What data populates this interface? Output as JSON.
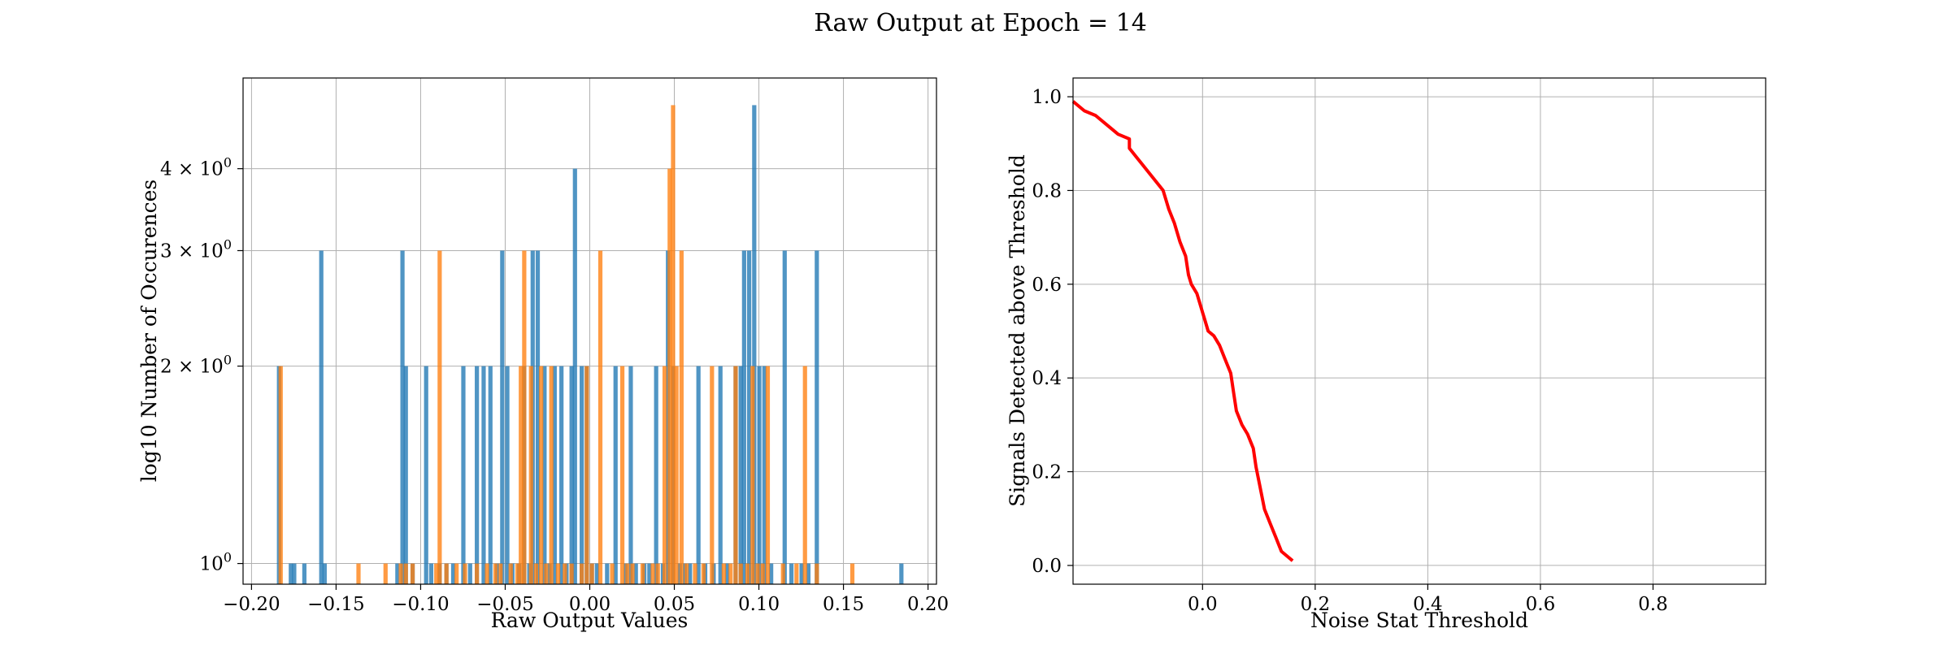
{
  "figure": {
    "title": "Raw Output at Epoch = 14"
  },
  "chart_data": [
    {
      "type": "bar",
      "subtype": "histogram",
      "xlabel": "Raw Output Values",
      "ylabel": "log10 Number of Occurences",
      "yscale": "log",
      "xlim": [
        -0.205,
        0.205
      ],
      "ylim": [
        0.93,
        5.5
      ],
      "grid": true,
      "x_ticks": [
        {
          "v": -0.2,
          "label": "−0.20"
        },
        {
          "v": -0.15,
          "label": "−0.15"
        },
        {
          "v": -0.1,
          "label": "−0.10"
        },
        {
          "v": -0.05,
          "label": "−0.05"
        },
        {
          "v": 0.0,
          "label": "0.00"
        },
        {
          "v": 0.05,
          "label": "0.05"
        },
        {
          "v": 0.1,
          "label": "0.10"
        },
        {
          "v": 0.15,
          "label": "0.15"
        },
        {
          "v": 0.2,
          "label": "0.20"
        }
      ],
      "y_ticks": [
        {
          "v": 1,
          "base": "10",
          "exp": "0"
        },
        {
          "v": 2,
          "base": "2 × 10",
          "exp": "0"
        },
        {
          "v": 3,
          "base": "3 × 10",
          "exp": "0"
        },
        {
          "v": 4,
          "base": "4 × 10",
          "exp": "0"
        }
      ],
      "bin_width": 0.0025,
      "series": [
        {
          "color": "#1f77b4",
          "bins": [
            [
              -0.185,
              2
            ],
            [
              -0.178,
              1
            ],
            [
              -0.176,
              1
            ],
            [
              -0.17,
              1
            ],
            [
              -0.16,
              3
            ],
            [
              -0.158,
              1
            ],
            [
              -0.115,
              1
            ],
            [
              -0.112,
              3
            ],
            [
              -0.11,
              2
            ],
            [
              -0.106,
              1
            ],
            [
              -0.098,
              2
            ],
            [
              -0.095,
              1
            ],
            [
              -0.09,
              1
            ],
            [
              -0.086,
              1
            ],
            [
              -0.082,
              1
            ],
            [
              -0.076,
              2
            ],
            [
              -0.072,
              1
            ],
            [
              -0.068,
              2
            ],
            [
              -0.064,
              2
            ],
            [
              -0.06,
              2
            ],
            [
              -0.056,
              1
            ],
            [
              -0.053,
              3
            ],
            [
              -0.05,
              2
            ],
            [
              -0.047,
              1
            ],
            [
              -0.043,
              1
            ],
            [
              -0.04,
              2
            ],
            [
              -0.037,
              1
            ],
            [
              -0.035,
              3
            ],
            [
              -0.032,
              3
            ],
            [
              -0.028,
              2
            ],
            [
              -0.025,
              1
            ],
            [
              -0.022,
              2
            ],
            [
              -0.018,
              2
            ],
            [
              -0.015,
              1
            ],
            [
              -0.012,
              2
            ],
            [
              -0.01,
              4
            ],
            [
              -0.006,
              2
            ],
            [
              -0.003,
              2
            ],
            [
              0.0,
              1
            ],
            [
              0.003,
              1
            ],
            [
              0.009,
              1
            ],
            [
              0.014,
              2
            ],
            [
              0.02,
              1
            ],
            [
              0.023,
              2
            ],
            [
              0.026,
              1
            ],
            [
              0.031,
              1
            ],
            [
              0.034,
              1
            ],
            [
              0.038,
              2
            ],
            [
              0.042,
              1
            ],
            [
              0.045,
              3
            ],
            [
              0.048,
              2
            ],
            [
              0.052,
              1
            ],
            [
              0.055,
              1
            ],
            [
              0.058,
              1
            ],
            [
              0.063,
              2
            ],
            [
              0.067,
              1
            ],
            [
              0.072,
              1
            ],
            [
              0.076,
              2
            ],
            [
              0.08,
              1
            ],
            [
              0.085,
              2
            ],
            [
              0.088,
              2
            ],
            [
              0.09,
              3
            ],
            [
              0.093,
              3
            ],
            [
              0.096,
              5
            ],
            [
              0.099,
              2
            ],
            [
              0.102,
              2
            ],
            [
              0.106,
              1
            ],
            [
              0.114,
              3
            ],
            [
              0.118,
              1
            ],
            [
              0.124,
              1
            ],
            [
              0.128,
              1
            ],
            [
              0.133,
              3
            ],
            [
              0.183,
              1
            ]
          ]
        },
        {
          "color": "#ff7f0e",
          "bins": [
            [
              -0.184,
              2
            ],
            [
              -0.138,
              1
            ],
            [
              -0.122,
              1
            ],
            [
              -0.113,
              1
            ],
            [
              -0.11,
              1
            ],
            [
              -0.106,
              1
            ],
            [
              -0.092,
              1
            ],
            [
              -0.09,
              3
            ],
            [
              -0.086,
              1
            ],
            [
              -0.08,
              1
            ],
            [
              -0.075,
              1
            ],
            [
              -0.068,
              1
            ],
            [
              -0.062,
              1
            ],
            [
              -0.057,
              1
            ],
            [
              -0.054,
              1
            ],
            [
              -0.048,
              1
            ],
            [
              -0.044,
              1
            ],
            [
              -0.042,
              2
            ],
            [
              -0.04,
              3
            ],
            [
              -0.036,
              2
            ],
            [
              -0.033,
              1
            ],
            [
              -0.03,
              2
            ],
            [
              -0.027,
              1
            ],
            [
              -0.024,
              2
            ],
            [
              -0.02,
              1
            ],
            [
              -0.016,
              1
            ],
            [
              -0.012,
              1
            ],
            [
              -0.006,
              1
            ],
            [
              -0.003,
              2
            ],
            [
              0.0,
              1
            ],
            [
              0.005,
              3
            ],
            [
              0.012,
              1
            ],
            [
              0.018,
              2
            ],
            [
              0.021,
              1
            ],
            [
              0.024,
              1
            ],
            [
              0.03,
              1
            ],
            [
              0.036,
              1
            ],
            [
              0.039,
              1
            ],
            [
              0.043,
              2
            ],
            [
              0.046,
              4
            ],
            [
              0.048,
              5
            ],
            [
              0.05,
              2
            ],
            [
              0.053,
              3
            ],
            [
              0.056,
              1
            ],
            [
              0.061,
              1
            ],
            [
              0.066,
              1
            ],
            [
              0.071,
              2
            ],
            [
              0.078,
              1
            ],
            [
              0.082,
              1
            ],
            [
              0.085,
              2
            ],
            [
              0.088,
              1
            ],
            [
              0.092,
              1
            ],
            [
              0.095,
              2
            ],
            [
              0.098,
              1
            ],
            [
              0.101,
              1
            ],
            [
              0.104,
              2
            ],
            [
              0.113,
              1
            ],
            [
              0.121,
              1
            ],
            [
              0.126,
              2
            ],
            [
              0.133,
              1
            ],
            [
              0.154,
              1
            ]
          ]
        }
      ]
    },
    {
      "type": "line",
      "xlabel": "Noise Stat Threshold",
      "ylabel": "Signals Detected above Threshold",
      "xlim": [
        -0.23,
        1.0
      ],
      "ylim": [
        -0.04,
        1.04
      ],
      "grid": true,
      "x_ticks": [
        {
          "v": 0.0,
          "label": "0.0"
        },
        {
          "v": 0.2,
          "label": "0.2"
        },
        {
          "v": 0.4,
          "label": "0.4"
        },
        {
          "v": 0.6,
          "label": "0.6"
        },
        {
          "v": 0.8,
          "label": "0.8"
        }
      ],
      "y_ticks": [
        {
          "v": 0.0,
          "label": "0.0"
        },
        {
          "v": 0.2,
          "label": "0.2"
        },
        {
          "v": 0.4,
          "label": "0.4"
        },
        {
          "v": 0.6,
          "label": "0.6"
        },
        {
          "v": 0.8,
          "label": "0.8"
        },
        {
          "v": 1.0,
          "label": "1.0"
        }
      ],
      "series": [
        {
          "color": "#ff0000",
          "points": [
            [
              -0.23,
              0.99
            ],
            [
              -0.21,
              0.97
            ],
            [
              -0.19,
              0.96
            ],
            [
              -0.17,
              0.94
            ],
            [
              -0.15,
              0.92
            ],
            [
              -0.13,
              0.91
            ],
            [
              -0.13,
              0.89
            ],
            [
              -0.11,
              0.86
            ],
            [
              -0.09,
              0.83
            ],
            [
              -0.07,
              0.8
            ],
            [
              -0.06,
              0.76
            ],
            [
              -0.05,
              0.73
            ],
            [
              -0.04,
              0.69
            ],
            [
              -0.03,
              0.66
            ],
            [
              -0.025,
              0.62
            ],
            [
              -0.02,
              0.6
            ],
            [
              -0.01,
              0.58
            ],
            [
              0.0,
              0.54
            ],
            [
              0.005,
              0.52
            ],
            [
              0.01,
              0.5
            ],
            [
              0.02,
              0.49
            ],
            [
              0.03,
              0.47
            ],
            [
              0.04,
              0.44
            ],
            [
              0.05,
              0.41
            ],
            [
              0.055,
              0.37
            ],
            [
              0.06,
              0.33
            ],
            [
              0.07,
              0.3
            ],
            [
              0.08,
              0.28
            ],
            [
              0.09,
              0.25
            ],
            [
              0.095,
              0.21
            ],
            [
              0.1,
              0.18
            ],
            [
              0.11,
              0.12
            ],
            [
              0.12,
              0.09
            ],
            [
              0.13,
              0.06
            ],
            [
              0.14,
              0.03
            ],
            [
              0.16,
              0.01
            ]
          ]
        }
      ]
    }
  ]
}
